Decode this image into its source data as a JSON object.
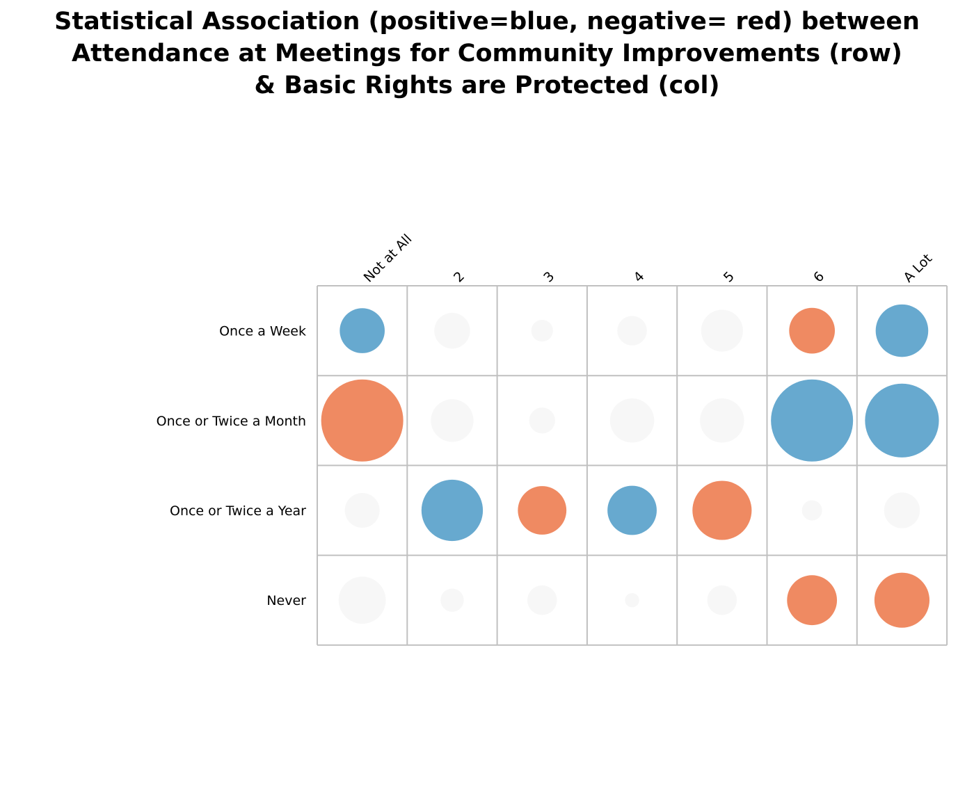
{
  "title_lines": [
    "Statistical Association (positive=blue, negative= red) between",
    "Attendance at Meetings for Community Improvements (row)",
    "& Basic Rights are Protected (col)"
  ],
  "colors": {
    "positive": "#67a9cf",
    "negative": "#ef8a62",
    "neutral": "#f7f7f7",
    "grid": "#c0c0c0"
  },
  "chart_data": {
    "type": "heatmap",
    "title": "Statistical Association (positive=blue, negative= red) between Attendance at Meetings for Community Improvements (row) & Basic Rights are Protected (col)",
    "rows": [
      "Once a Week",
      "Once or Twice a Month",
      "Once or Twice a Year",
      "Never"
    ],
    "cols": [
      "Not at All",
      "2",
      "3",
      "4",
      "5",
      "6",
      "A Lot"
    ],
    "size_scale": {
      "max_magnitude": 1.0
    },
    "cells": [
      [
        {
          "v": 0.3,
          "s": "positive"
        },
        {
          "v": 0.19,
          "s": "neutral"
        },
        {
          "v": 0.07,
          "s": "neutral"
        },
        {
          "v": 0.13,
          "s": "neutral"
        },
        {
          "v": 0.26,
          "s": "neutral"
        },
        {
          "v": 0.31,
          "s": "negative"
        },
        {
          "v": 0.41,
          "s": "positive"
        }
      ],
      [
        {
          "v": 1.0,
          "s": "negative"
        },
        {
          "v": 0.27,
          "s": "neutral"
        },
        {
          "v": 0.1,
          "s": "neutral"
        },
        {
          "v": 0.29,
          "s": "neutral"
        },
        {
          "v": 0.29,
          "s": "neutral"
        },
        {
          "v": 1.0,
          "s": "positive"
        },
        {
          "v": 0.81,
          "s": "positive"
        }
      ],
      [
        {
          "v": 0.18,
          "s": "neutral"
        },
        {
          "v": 0.56,
          "s": "positive"
        },
        {
          "v": 0.35,
          "s": "negative"
        },
        {
          "v": 0.36,
          "s": "positive"
        },
        {
          "v": 0.52,
          "s": "negative"
        },
        {
          "v": 0.06,
          "s": "neutral"
        },
        {
          "v": 0.19,
          "s": "neutral"
        }
      ],
      [
        {
          "v": 0.33,
          "s": "neutral"
        },
        {
          "v": 0.08,
          "s": "neutral"
        },
        {
          "v": 0.13,
          "s": "neutral"
        },
        {
          "v": 0.03,
          "s": "neutral"
        },
        {
          "v": 0.13,
          "s": "neutral"
        },
        {
          "v": 0.37,
          "s": "negative"
        },
        {
          "v": 0.45,
          "s": "negative"
        }
      ]
    ]
  }
}
